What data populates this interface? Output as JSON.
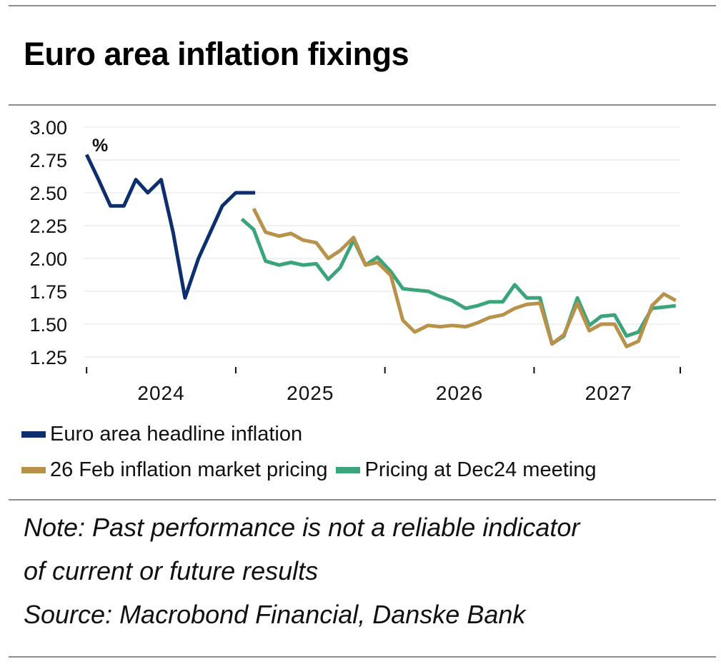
{
  "title": "Euro area inflation fixings",
  "legend": [
    {
      "label": "Euro area headline inflation",
      "color": "#0d2f6e"
    },
    {
      "label": "26 Feb inflation market pricing",
      "color": "#b8924a"
    },
    {
      "label": "Pricing at Dec24 meeting",
      "color": "#3aa57a"
    }
  ],
  "notes": {
    "line1": "Note: Past performance is not a reliable indicator",
    "line2": "of current or future results",
    "source": "Source: Macrobond Financial, Danske Bank"
  },
  "chart_data": {
    "type": "line",
    "title": "Euro area inflation fixings",
    "ylabel": "%",
    "xlabel": "",
    "ylim": [
      1.25,
      3.0
    ],
    "yticks": [
      "3.00",
      "2.75",
      "2.50",
      "2.25",
      "2.00",
      "1.75",
      "1.50",
      "1.25"
    ],
    "xlim": [
      2023.9,
      2027.9
    ],
    "year_labels": [
      "2024",
      "2025",
      "2026",
      "2027"
    ],
    "series": [
      {
        "name": "Euro area headline inflation",
        "color": "#0d2f6e",
        "x": [
          2023.92,
          2024.0,
          2024.08,
          2024.17,
          2024.25,
          2024.33,
          2024.42,
          2024.5,
          2024.58,
          2024.67,
          2024.75,
          2024.83,
          2024.92,
          2025.0,
          2025.05
        ],
        "y": [
          2.79,
          2.6,
          2.4,
          2.4,
          2.6,
          2.5,
          2.6,
          2.2,
          1.7,
          2.0,
          2.2,
          2.4,
          2.5,
          2.5,
          2.5
        ]
      },
      {
        "name": "26 Feb inflation market pricing",
        "color": "#b8924a",
        "x": [
          2025.04,
          2025.12,
          2025.21,
          2025.29,
          2025.37,
          2025.46,
          2025.54,
          2025.62,
          2025.71,
          2025.79,
          2025.87,
          2025.96,
          2026.04,
          2026.12,
          2026.21,
          2026.29,
          2026.37,
          2026.46,
          2026.54,
          2026.62,
          2026.71,
          2026.79,
          2026.87,
          2026.96,
          2027.04,
          2027.12,
          2027.21,
          2027.29,
          2027.37,
          2027.46,
          2027.54,
          2027.62,
          2027.71,
          2027.79,
          2027.87
        ],
        "y": [
          2.38,
          2.2,
          2.17,
          2.19,
          2.14,
          2.12,
          2.0,
          2.06,
          2.16,
          1.95,
          1.97,
          1.87,
          1.53,
          1.44,
          1.49,
          1.48,
          1.49,
          1.48,
          1.51,
          1.55,
          1.57,
          1.62,
          1.65,
          1.66,
          1.35,
          1.42,
          1.66,
          1.45,
          1.5,
          1.5,
          1.33,
          1.37,
          1.64,
          1.73,
          1.68
        ]
      },
      {
        "name": "Pricing at Dec24 meeting",
        "color": "#3aa57a",
        "x": [
          2024.96,
          2025.04,
          2025.12,
          2025.21,
          2025.29,
          2025.37,
          2025.46,
          2025.54,
          2025.62,
          2025.71,
          2025.79,
          2025.87,
          2025.96,
          2026.04,
          2026.12,
          2026.21,
          2026.29,
          2026.37,
          2026.46,
          2026.54,
          2026.62,
          2026.71,
          2026.79,
          2026.87,
          2026.96,
          2027.04,
          2027.12,
          2027.21,
          2027.29,
          2027.37,
          2027.46,
          2027.54,
          2027.62,
          2027.71,
          2027.79,
          2027.87
        ],
        "y": [
          2.3,
          2.22,
          1.98,
          1.95,
          1.97,
          1.95,
          1.96,
          1.84,
          1.93,
          2.14,
          1.95,
          2.01,
          1.9,
          1.77,
          1.76,
          1.75,
          1.71,
          1.68,
          1.62,
          1.64,
          1.67,
          1.67,
          1.8,
          1.7,
          1.7,
          1.35,
          1.41,
          1.7,
          1.49,
          1.56,
          1.57,
          1.41,
          1.44,
          1.62,
          1.63,
          1.64
        ]
      }
    ]
  }
}
